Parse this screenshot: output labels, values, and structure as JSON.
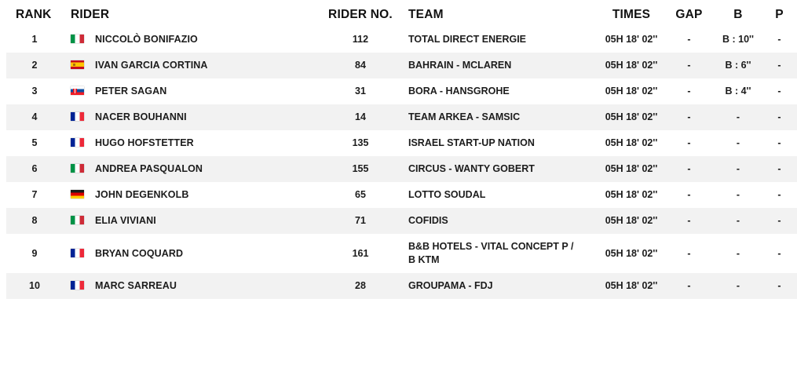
{
  "table": {
    "columns": [
      {
        "key": "rank",
        "label": "RANK"
      },
      {
        "key": "rider",
        "label": "RIDER"
      },
      {
        "key": "rider_no",
        "label": "RIDER NO."
      },
      {
        "key": "team",
        "label": "TEAM"
      },
      {
        "key": "times",
        "label": "TIMES"
      },
      {
        "key": "gap",
        "label": "GAP"
      },
      {
        "key": "bonus",
        "label": "B"
      },
      {
        "key": "penalty",
        "label": "P"
      }
    ],
    "rows": [
      {
        "rank": "1",
        "flag": "italy",
        "rider": "NICCOLÒ BONIFAZIO",
        "rider_no": "112",
        "team": "TOTAL DIRECT ENERGIE",
        "times": "05H 18' 02''",
        "gap": "-",
        "bonus": "B : 10''",
        "penalty": "-"
      },
      {
        "rank": "2",
        "flag": "spain",
        "rider": "IVAN GARCIA CORTINA",
        "rider_no": "84",
        "team": "BAHRAIN - MCLAREN",
        "times": "05H 18' 02''",
        "gap": "-",
        "bonus": "B : 6''",
        "penalty": "-"
      },
      {
        "rank": "3",
        "flag": "slovakia",
        "rider": "PETER SAGAN",
        "rider_no": "31",
        "team": "BORA - HANSGROHE",
        "times": "05H 18' 02''",
        "gap": "-",
        "bonus": "B : 4''",
        "penalty": "-"
      },
      {
        "rank": "4",
        "flag": "france",
        "rider": "NACER BOUHANNI",
        "rider_no": "14",
        "team": "TEAM ARKEA - SAMSIC",
        "times": "05H 18' 02''",
        "gap": "-",
        "bonus": "-",
        "penalty": "-"
      },
      {
        "rank": "5",
        "flag": "france",
        "rider": "HUGO HOFSTETTER",
        "rider_no": "135",
        "team": "ISRAEL START-UP NATION",
        "times": "05H 18' 02''",
        "gap": "-",
        "bonus": "-",
        "penalty": "-"
      },
      {
        "rank": "6",
        "flag": "italy",
        "rider": "ANDREA PASQUALON",
        "rider_no": "155",
        "team": "CIRCUS - WANTY GOBERT",
        "times": "05H 18' 02''",
        "gap": "-",
        "bonus": "-",
        "penalty": "-"
      },
      {
        "rank": "7",
        "flag": "germany",
        "rider": "JOHN DEGENKOLB",
        "rider_no": "65",
        "team": "LOTTO SOUDAL",
        "times": "05H 18' 02''",
        "gap": "-",
        "bonus": "-",
        "penalty": "-"
      },
      {
        "rank": "8",
        "flag": "italy",
        "rider": "ELIA VIVIANI",
        "rider_no": "71",
        "team": "COFIDIS",
        "times": "05H 18' 02''",
        "gap": "-",
        "bonus": "-",
        "penalty": "-"
      },
      {
        "rank": "9",
        "flag": "france",
        "rider": "BRYAN COQUARD",
        "rider_no": "161",
        "team": "B&B HOTELS - VITAL CONCEPT P / B KTM",
        "times": "05H 18' 02''",
        "gap": "-",
        "bonus": "-",
        "penalty": "-"
      },
      {
        "rank": "10",
        "flag": "france",
        "rider": "MARC SARREAU",
        "rider_no": "28",
        "team": "GROUPAMA - FDJ",
        "times": "05H 18' 02''",
        "gap": "-",
        "bonus": "-",
        "penalty": "-"
      }
    ],
    "colors": {
      "row_alt_bg": "#f2f2f2",
      "header_text": "#111111",
      "cell_text": "#1c1c1c"
    }
  }
}
